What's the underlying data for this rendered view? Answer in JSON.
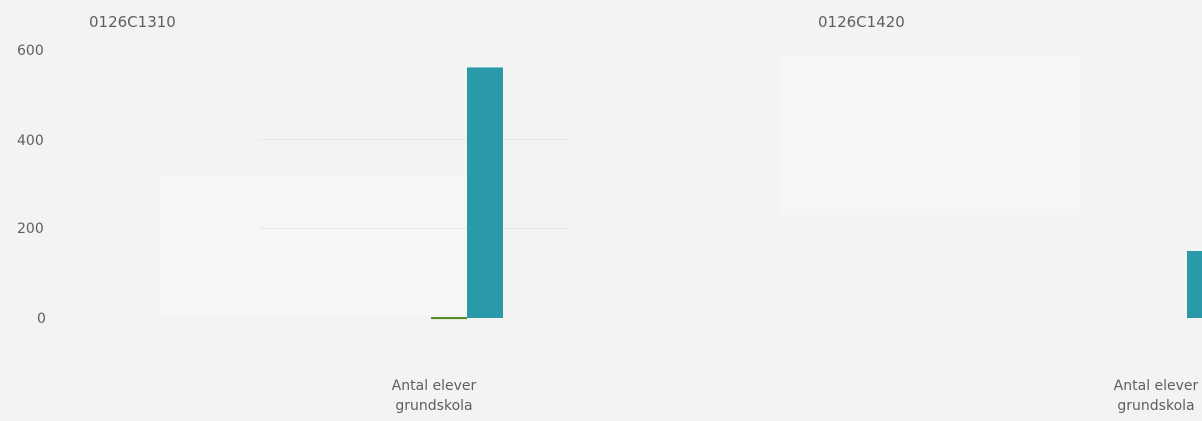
{
  "chart_data": [
    {
      "type": "bar",
      "title": "0126C1310",
      "categories": [
        "Antal elever grundskola"
      ],
      "series": [
        {
          "name": "",
          "values": [
            2
          ],
          "color": "#4f8a1f"
        },
        {
          "name": "",
          "values": [
            561
          ],
          "color": "#2a9aa9"
        }
      ],
      "ylim": [
        -40,
        600
      ],
      "yticks": [
        0,
        200,
        400,
        600
      ],
      "grid": true
    },
    {
      "type": "bar",
      "title": "0126C1420",
      "categories": [
        "Antal elever grundskola"
      ],
      "series": [
        {
          "name": "",
          "values": [
            0
          ],
          "color": "#4f8a1f"
        },
        {
          "name": "",
          "values": [
            150
          ],
          "color": "#2a9aa9"
        }
      ],
      "ylim": [
        -40,
        600
      ],
      "yticks": [
        0,
        200,
        400,
        600
      ],
      "grid": true
    }
  ],
  "labels": {
    "panel_1_category_line_1": "Antal elever",
    "panel_1_category_line_2": "grundskola",
    "panel_2_category_line_1": "Antal elever",
    "panel_2_category_line_2": "grundskola"
  },
  "style": {
    "background": "#f3f3f3",
    "text_color": "#5f5f5f",
    "grid_color": "#e6e6e6",
    "green": "#4f8a1f",
    "teal": "#2a9aa9"
  }
}
